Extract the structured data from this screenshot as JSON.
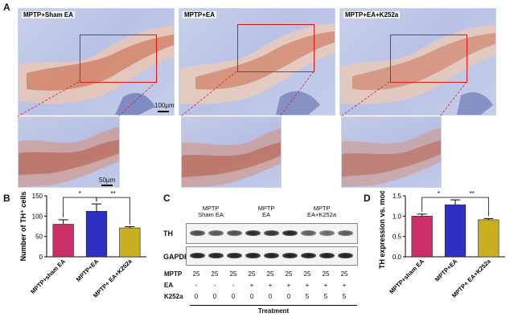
{
  "panel_labels": {
    "A": "A",
    "B": "B",
    "C": "C",
    "D": "D"
  },
  "panel_A": {
    "images": [
      {
        "label": "MPTP+Sham EA"
      },
      {
        "label": "MPTP+EA"
      },
      {
        "label": "MPTP+EA+K252a"
      }
    ],
    "scale_bar_main": "100μm",
    "scale_bar_zoom": "50μm"
  },
  "colors": {
    "sham": "#c9306a",
    "ea": "#2f2fc4",
    "k252a": "#c9b020",
    "roi": "#e01818"
  },
  "chart_data": [
    {
      "type": "bar",
      "panel": "B",
      "categories": [
        "MPTP+sham EA",
        "MPTP+EA",
        "MPTP+ EA+K252a"
      ],
      "values": [
        80,
        112,
        71
      ],
      "errors": [
        11,
        18,
        3
      ],
      "ylabel": "Number of TH⁺ cells",
      "ylim": [
        0,
        150
      ],
      "yticks": [
        "0",
        "50",
        "100",
        "150"
      ],
      "significance": [
        {
          "between": [
            0,
            1
          ],
          "label": "*"
        },
        {
          "between": [
            1,
            2
          ],
          "label": "**"
        }
      ]
    },
    {
      "type": "bar",
      "panel": "D",
      "categories": [
        "MPTP+sham EA",
        "MPTP+EA",
        "MPTP+ EA+K252a"
      ],
      "values": [
        1.0,
        1.28,
        0.91
      ],
      "errors": [
        0.05,
        0.12,
        0.03
      ],
      "ylabel": "TH expression vs. model",
      "ylim": [
        0,
        1.5
      ],
      "yticks": [
        "0.0",
        "0.5",
        "1.0",
        "1.5"
      ],
      "significance": [
        {
          "between": [
            0,
            1
          ],
          "label": "*"
        },
        {
          "between": [
            1,
            2
          ],
          "label": "**"
        }
      ]
    }
  ],
  "panel_C": {
    "groups": [
      {
        "line1": "MPTP",
        "line2": "Sham EA"
      },
      {
        "line1": "MPTP",
        "line2": "EA"
      },
      {
        "line1": "MPTP",
        "line2": "EA+K252a"
      }
    ],
    "bands": [
      "TH",
      "GAPDH"
    ],
    "th_intensity": [
      0.8,
      0.75,
      0.78,
      0.95,
      0.9,
      0.98,
      0.7,
      0.65,
      0.72
    ],
    "gapdh_intensity": [
      1,
      1,
      1,
      1,
      1,
      1,
      1,
      1,
      1
    ],
    "rows": [
      {
        "name": "MPTP",
        "values": [
          "25",
          "25",
          "25",
          "25",
          "25",
          "25",
          "25",
          "25",
          "25"
        ]
      },
      {
        "name": "EA",
        "values": [
          "-",
          "-",
          "-",
          "+",
          "+",
          "+",
          "+",
          "+",
          "+"
        ]
      },
      {
        "name": "K252a",
        "values": [
          "0",
          "0",
          "0",
          "0",
          "0",
          "0",
          "5",
          "5",
          "5"
        ]
      }
    ],
    "treatment_label": "Treatment"
  }
}
